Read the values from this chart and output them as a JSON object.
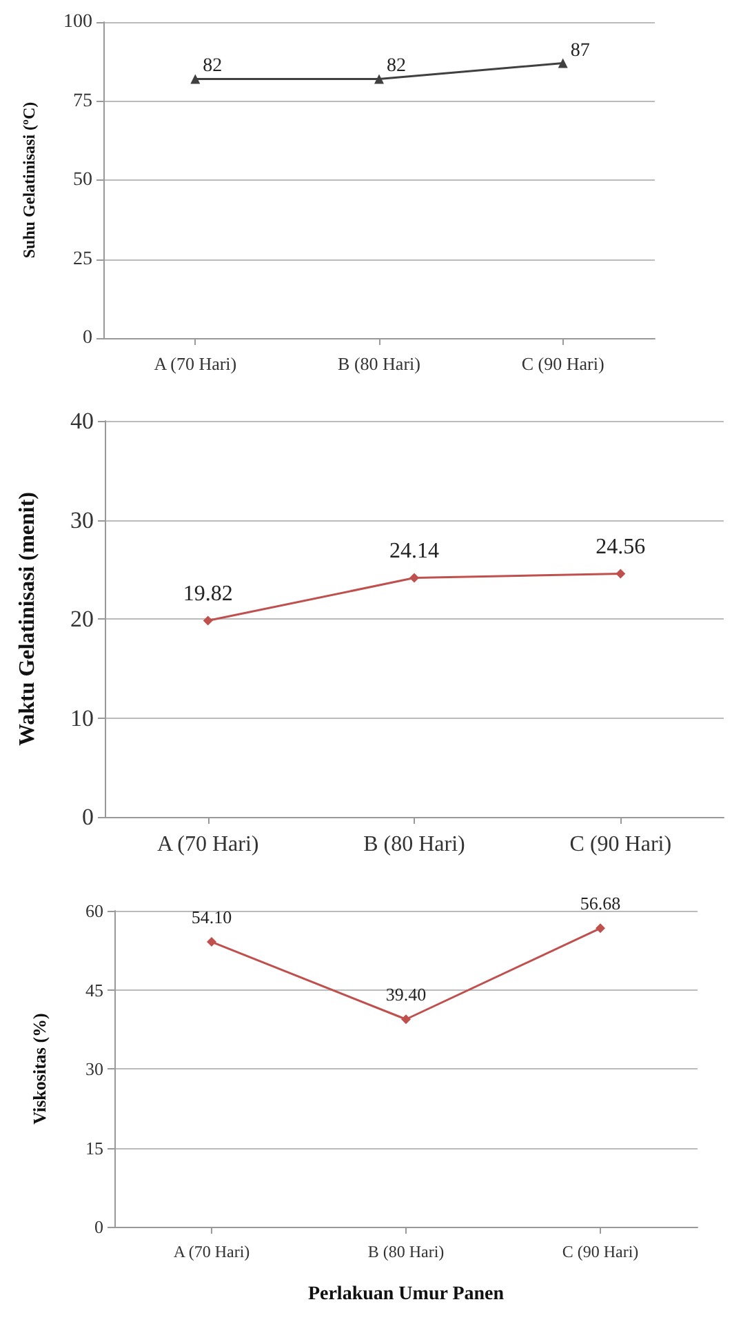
{
  "chart_data": [
    {
      "type": "line",
      "ylabel": "Suhu Gelatinisasi (ºC)",
      "categories": [
        "A (70 Hari)",
        "B (80 Hari)",
        "C (90 Hari)"
      ],
      "series": [
        {
          "color": "#404040",
          "values": [
            82,
            82,
            87
          ]
        }
      ],
      "ylim": [
        0,
        100
      ],
      "yticks": [
        0,
        25,
        50,
        75,
        100
      ],
      "grid": "y",
      "marker": "triangle",
      "line_style": "solid",
      "data_labels": true
    },
    {
      "type": "line",
      "ylabel": "Waktu Gelatinisasi (menit)",
      "categories": [
        "A (70 Hari)",
        "B (80 Hari)",
        "C (90 Hari)"
      ],
      "series": [
        {
          "color": "#c0504d",
          "values": [
            19.82,
            24.14,
            24.56
          ]
        }
      ],
      "ylim": [
        0,
        40
      ],
      "yticks": [
        0,
        10,
        20,
        30,
        40
      ],
      "grid": "y",
      "marker": "diamond",
      "line_style": "solid",
      "data_labels": true
    },
    {
      "type": "line",
      "ylabel": "Viskositas (%)",
      "xlabel": "Perlakuan Umur Panen",
      "categories": [
        "A (70 Hari)",
        "B (80 Hari)",
        "C (90 Hari)"
      ],
      "series": [
        {
          "color": "#c0504d",
          "values": [
            54.1,
            39.4,
            56.68
          ],
          "value_labels": [
            "54.10",
            "39.40",
            "56.68"
          ]
        }
      ],
      "ylim": [
        0,
        60
      ],
      "yticks": [
        0,
        15,
        30,
        45,
        60
      ],
      "grid": "y",
      "marker": "diamond",
      "line_style": "solid"
    }
  ]
}
